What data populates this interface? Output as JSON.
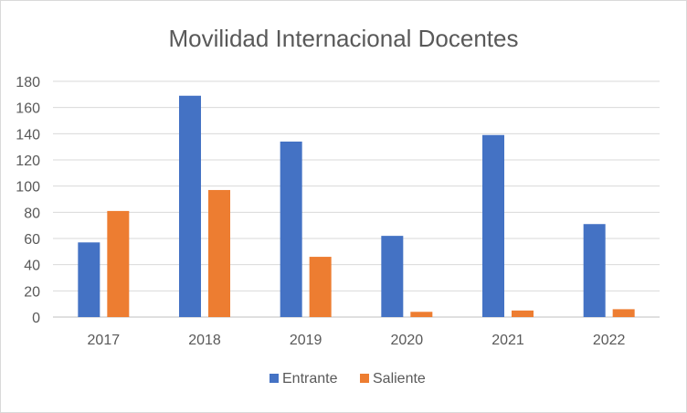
{
  "chart_data": {
    "type": "bar",
    "title": "Movilidad Internacional Docentes",
    "xlabel": "",
    "ylabel": "",
    "categories": [
      "2017",
      "2018",
      "2019",
      "2020",
      "2021",
      "2022"
    ],
    "series": [
      {
        "name": "Entrante",
        "color": "#4472c4",
        "values": [
          57,
          169,
          134,
          62,
          139,
          71
        ]
      },
      {
        "name": "Saliente",
        "color": "#ed7d31",
        "values": [
          81,
          97,
          46,
          4,
          5,
          6
        ]
      }
    ],
    "ylim": [
      0,
      180
    ],
    "yticks": [
      "0",
      "20",
      "40",
      "60",
      "80",
      "100",
      "120",
      "140",
      "160",
      "180"
    ],
    "grid": true,
    "legend": "bottom-center"
  }
}
